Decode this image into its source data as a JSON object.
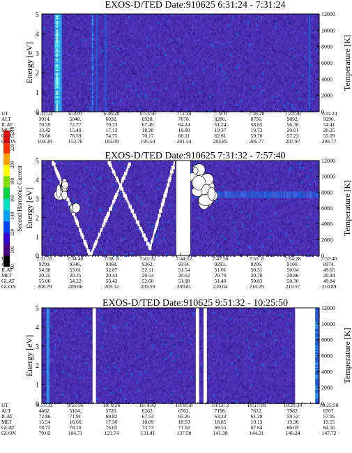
{
  "colors": {
    "background_purple": "#4a2fb0",
    "spectrogram_deep": "#3a1f9a",
    "spectrogram_blue": "#1e5fd8",
    "spectrogram_cyan": "#3fd0f0",
    "spectrogram_white": "#ffffff"
  },
  "colorbar": {
    "label": "Second Harmonic Current",
    "ticks": [
      "80",
      "100",
      "120",
      "140",
      "160",
      "180",
      "200",
      "220",
      "240"
    ],
    "range": [
      80,
      240
    ],
    "colors": [
      "#000000",
      "#4b0082",
      "#3300cc",
      "#0040ff",
      "#00a0ff",
      "#00e0c0",
      "#00d040",
      "#80e000",
      "#ffff00",
      "#ffa000",
      "#ff3000",
      "#ff0000"
    ]
  },
  "chart_data": [
    {
      "type": "heatmap",
      "title": "EXOS-D/TED   Date:910625  6:31:24 - 7:31:24",
      "ylabel": "Energy [eV]",
      "y2label": "Temperature [K]",
      "ylim": [
        0,
        5
      ],
      "y2lim": [
        0,
        12000
      ],
      "yticks": [
        "0",
        "1",
        "2",
        "3",
        "4",
        "5"
      ],
      "y2ticks": [
        "0",
        "2000",
        "4000",
        "6000",
        "8000",
        "10000",
        "12000"
      ],
      "features": {
        "bright_bands": [
          {
            "t": 0.055,
            "w": 0.018,
            "level": 1.0
          },
          {
            "t": 0.068,
            "w": 0.008,
            "level": 0.8
          },
          {
            "t": 0.183,
            "w": 0.006,
            "level": 0.6
          },
          {
            "t": 0.198,
            "w": 0.004,
            "level": 0.45
          },
          {
            "t": 0.23,
            "w": 0.004,
            "level": 0.45
          },
          {
            "t": 0.965,
            "w": 0.004,
            "level": 0.4
          }
        ],
        "gaps": [],
        "lobes": []
      },
      "rows": [
        {
          "label": "UT",
          "values": [
            "6:31:24",
            "6:39:0",
            "6:46:28",
            "6:53:56",
            "7: 1:24",
            "7: 9: 0",
            "7:16:28",
            "7:23:56",
            "7:31:24"
          ]
        },
        {
          "label": "ALT",
          "values": [
            "3914.",
            "5048.",
            "6032.",
            "6928.",
            "7670.",
            "8286.",
            "8756.",
            "9092.",
            "9296."
          ]
        },
        {
          "label": "ILAT",
          "values": [
            "70.59",
            "72.77",
            "70.73",
            "67.49",
            "64.24",
            "61.24",
            "58.65",
            "56.38",
            "54.41"
          ]
        },
        {
          "label": "MLT",
          "values": [
            "13.42",
            "15.49",
            "17.13",
            "18.20",
            "18.88",
            "19.37",
            "19.72",
            "20.01",
            "20.25"
          ]
        },
        {
          "label": "GLAT",
          "values": [
            "76.66",
            "78.59",
            "74.75",
            "70.17",
            "66.11",
            "62.61",
            "59.70",
            "57.22",
            "55.09"
          ]
        },
        {
          "label": "GLON",
          "values": [
            "104.38",
            "153.70",
            "183.09",
            "195.54",
            "201.54",
            "204.85",
            "206.77",
            "207.97",
            "208.77"
          ]
        }
      ]
    },
    {
      "type": "heatmap",
      "title": "EXOS-D/TED   Date:910625  7:31:32 - 7:57:40",
      "ylabel": "Energy [eV]",
      "y2label": "Temperature [K]",
      "ylim": [
        0,
        5
      ],
      "y2lim": [
        0,
        12000
      ],
      "yticks": [
        "0",
        "1",
        "2",
        "3",
        "4",
        "5"
      ],
      "y2ticks": [
        "0",
        "2000",
        "4000",
        "6000",
        "8000",
        "10000",
        "12000"
      ],
      "features": {
        "bright_bands": [],
        "gaps": [
          {
            "t0": 0.485,
            "t1": 0.535
          }
        ],
        "lobes": [
          {
            "t0": 0.04,
            "t1": 0.32,
            "vt": 0.175,
            "e0": 4.8,
            "e1": 4.95,
            "ebot": 0.0
          },
          {
            "t0": 0.24,
            "t1": 0.48,
            "vt": 0.39,
            "e0": 3.9,
            "e1": 5.0,
            "ebot": 0.4
          }
        ],
        "blobs": [
          {
            "t": 0.555,
            "e": 4.3,
            "r": 0.015
          },
          {
            "t": 0.585,
            "e": 3.6,
            "r": 0.02
          },
          {
            "t": 0.6,
            "e": 2.9,
            "r": 0.018
          },
          {
            "t": 0.07,
            "e": 3.5,
            "r": 0.015
          },
          {
            "t": 0.12,
            "e": 2.4,
            "r": 0.01
          }
        ],
        "horizontal_band": {
          "e": 3.2,
          "w": 0.35,
          "t0": 0.55,
          "t1": 1.0,
          "level": 0.55
        }
      },
      "rows": [
        {
          "label": "UT",
          "values": [
            "7:31:32",
            "7:34:48",
            "7:38: 8",
            "7:41:32",
            "7:44:52",
            "7:47:56",
            "7:51: 8",
            "7:54:28",
            "7:57:40"
          ]
        },
        {
          "label": "ALT",
          "values": [
            "9299.",
            "9346.",
            "9368.",
            "9362.",
            "9334.",
            "9283.",
            "9206.",
            "9100.",
            "8974."
          ]
        },
        {
          "label": "ILAT",
          "values": [
            "54.38",
            "53.61",
            "52.87",
            "52.11",
            "51.54",
            "51.01",
            "50.51",
            "50.04",
            "49.65"
          ]
        },
        {
          "label": "MLT",
          "values": [
            "20.25",
            "20.35",
            "20.44",
            "20.54",
            "20.62",
            "20.70",
            "20.78",
            "20.86",
            "20.94"
          ]
        },
        {
          "label": "GLAT",
          "values": [
            "55.06",
            "54.22",
            "53.43",
            "52.60",
            "51.98",
            "51.40",
            "50.83",
            "50.30",
            "49.84"
          ]
        },
        {
          "label": "GLON",
          "values": [
            "208.79",
            "209.06",
            "209.32",
            "209.59",
            "209.81",
            "210.04",
            "210.29",
            "210.57",
            "210.89"
          ]
        }
      ]
    },
    {
      "type": "heatmap",
      "title": "EXOS-D/TED   Date:910625  9:51:32 - 10:25:50",
      "ylabel": "Energy [eV]",
      "y2label": "Temperature [K]",
      "ylim": [
        0,
        5
      ],
      "y2lim": [
        0,
        12000
      ],
      "yticks": [
        "0",
        "1",
        "2",
        "3",
        "4",
        "5"
      ],
      "y2ticks": [
        "0",
        "2000",
        "4000",
        "6000",
        "8000",
        "10000",
        "12000"
      ],
      "features": {
        "bright_bands": [
          {
            "t": 0.022,
            "w": 0.01,
            "level": 0.8
          },
          {
            "t": 0.99,
            "w": 0.012,
            "level": 0.6
          }
        ],
        "gaps": [
          {
            "t0": 0.183,
            "t1": 0.195
          },
          {
            "t0": 0.555,
            "t1": 0.567
          },
          {
            "t0": 0.583,
            "t1": 0.595
          },
          {
            "t0": 0.913,
            "t1": 0.985
          }
        ],
        "lobes": []
      },
      "rows": [
        {
          "label": "UT",
          "values": [
            "9:51:32",
            "9:55:56",
            "10: 0:26",
            "10: 4:42",
            "10: 8:58",
            "10:13: 2",
            "10:17:18",
            "10:21:34",
            "10:25:50"
          ]
        },
        {
          "label": "ALT",
          "values": [
            "4462.",
            "5104.",
            "5720.",
            "6262.",
            "6762.",
            "7198.",
            "7612.",
            "7982.",
            "8307."
          ]
        },
        {
          "label": "ILAT",
          "values": [
            "72.86",
            "71.91",
            "69.82",
            "67.53",
            "65.26",
            "63.23",
            "61.28",
            "59.52",
            "57.95"
          ]
        },
        {
          "label": "MLT",
          "values": [
            "15.54",
            "16.66",
            "17.50",
            "18.09",
            "18.53",
            "18.85",
            "19.13",
            "19.36",
            "19.55"
          ]
        },
        {
          "label": "GLAT",
          "values": [
            "78.72",
            "78.10",
            "76.02",
            "73.73",
            "71.50",
            "69.55",
            "67.64",
            "66.03",
            "64.56"
          ]
        },
        {
          "label": "GLON",
          "values": [
            "79.03",
            "104.71",
            "121.74",
            "131.41",
            "137.50",
            "141.38",
            "144.21",
            "146.24",
            "147.72"
          ]
        }
      ]
    }
  ]
}
